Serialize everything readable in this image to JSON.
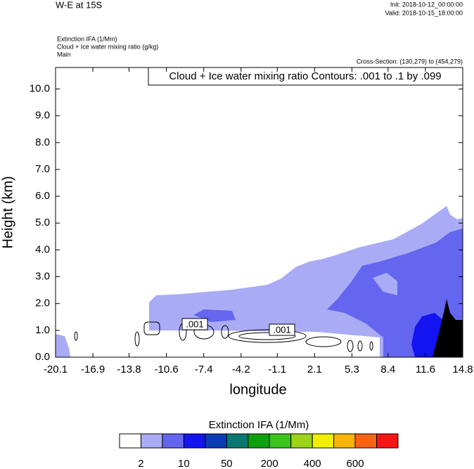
{
  "chart_data": {
    "type": "contour",
    "title": "W-E at 15S",
    "init": "Init: 2018-10-12_00:00:00",
    "valid": "Valid: 2018-10-15_18:00:00",
    "subtitles": [
      "Extinction IFA   (1/Mm)",
      "Cloud + Ice water mixing ratio   (g/kg)",
      "Main"
    ],
    "cross_section": "Cross-Section: (130,279) to (454,279)",
    "contour_note": "Cloud + Ice water mixing ratio Contours: .001 to .1 by .099",
    "contour_labels": [
      ".001",
      ".001"
    ],
    "xlabel": "longitude",
    "ylabel": "Height (km)",
    "xlim": [
      -20.1,
      14.8
    ],
    "xticks": [
      -20.1,
      -16.9,
      -13.8,
      -10.6,
      -7.4,
      -4.2,
      -1.1,
      2.1,
      5.3,
      8.4,
      11.6,
      14.8
    ],
    "ylim": [
      0,
      10.8
    ],
    "yticks": [
      {
        "value": 0,
        "label": "0.0"
      },
      {
        "value": 1,
        "label": "1.0"
      },
      {
        "value": 2,
        "label": "2.0"
      },
      {
        "value": 3,
        "label": "3.0"
      },
      {
        "value": 4,
        "label": "4.0"
      },
      {
        "value": 5,
        "label": "5.0"
      },
      {
        "value": 6,
        "label": "6.0"
      },
      {
        "value": 7,
        "label": "7.0"
      },
      {
        "value": 8,
        "label": "8.0"
      },
      {
        "value": 9,
        "label": "9.0"
      },
      {
        "value": 10,
        "label": "10.0"
      }
    ],
    "colorbar": {
      "title": "Extinction IFA  (1/Mm)",
      "colors": [
        "#ffffff",
        "#a9abf5",
        "#6466f0",
        "#1414f0",
        "#0c3cb4",
        "#087870",
        "#0ca00c",
        "#3cc41c",
        "#9cd418",
        "#f0f000",
        "#f8b400",
        "#f86414",
        "#f81414"
      ],
      "labels": [
        2,
        10,
        50,
        200,
        400,
        600
      ]
    }
  }
}
